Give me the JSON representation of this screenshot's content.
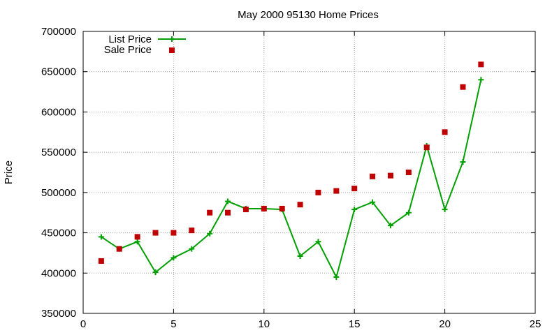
{
  "chart_data": {
    "type": "scatter",
    "title": "May 2000 95130 Home Prices",
    "xlabel": "",
    "ylabel": "Price",
    "xlim": [
      0,
      25
    ],
    "ylim": [
      350000,
      700000
    ],
    "xticks": [
      "0",
      "5",
      "10",
      "15",
      "20",
      "25"
    ],
    "yticks": [
      "350000",
      "400000",
      "450000",
      "500000",
      "550000",
      "600000",
      "650000",
      "700000"
    ],
    "grid": true,
    "legend_position": "top-left",
    "x": [
      1,
      2,
      3,
      4,
      5,
      6,
      7,
      8,
      9,
      10,
      11,
      12,
      13,
      14,
      15,
      16,
      17,
      18,
      19,
      20,
      21,
      22
    ],
    "series": [
      {
        "name": "List Price",
        "style": "line-plus",
        "color": "#00a000",
        "values": [
          445000,
          430000,
          439000,
          401000,
          419000,
          430000,
          449000,
          489000,
          480000,
          480000,
          479000,
          421000,
          439000,
          395000,
          479000,
          488000,
          459000,
          475000,
          558000,
          479000,
          538000,
          640000
        ]
      },
      {
        "name": "Sale Price",
        "style": "square",
        "color": "#c00000",
        "values": [
          415000,
          430000,
          445000,
          450000,
          450000,
          453000,
          475000,
          475000,
          479000,
          480000,
          480000,
          485000,
          500000,
          502000,
          505000,
          520000,
          521000,
          525000,
          556000,
          575000,
          631000,
          659000
        ]
      }
    ]
  }
}
